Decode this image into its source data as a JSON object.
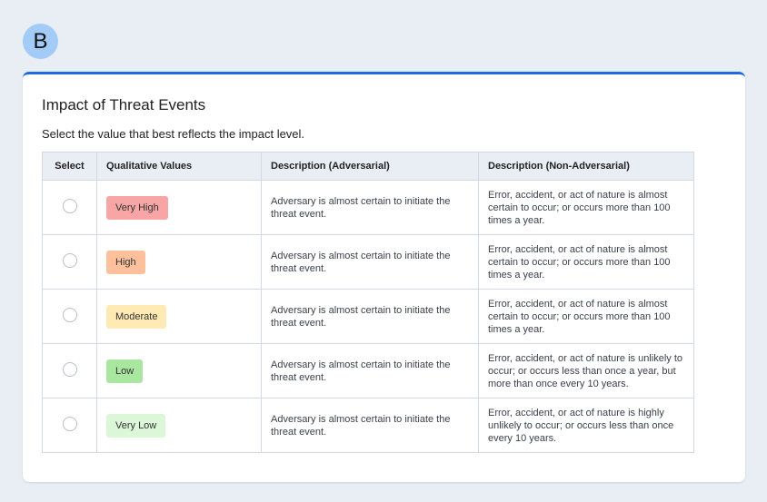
{
  "avatar": {
    "letter": "B"
  },
  "card": {
    "title": "Impact of Threat Events",
    "subtitle": "Select the value that best reflects the impact level.",
    "accent": "#1f6ae0"
  },
  "table": {
    "headers": [
      "Select",
      "Qualitative Values",
      "Description (Adversarial)",
      "Description (Non-Adversarial)"
    ],
    "rows": [
      {
        "value": "Very High",
        "color": "#f8a5a5",
        "adversarial": "Adversary is almost certain to initiate the threat event.",
        "non_adversarial": "Error, accident, or act of nature is almost certain to occur; or occurs more than 100 times a year.",
        "selected": false
      },
      {
        "value": "High",
        "color": "#fdc09c",
        "adversarial": "Adversary is almost certain to initiate the threat event.",
        "non_adversarial": "Error, accident, or act of nature is almost certain to occur; or occurs more than 100 times a year.",
        "selected": false
      },
      {
        "value": "Moderate",
        "color": "#feeab2",
        "adversarial": "Adversary is almost certain to initiate the threat event.",
        "non_adversarial": "Error, accident, or act of nature is almost certain to occur; or occurs more than 100 times a year.",
        "selected": false
      },
      {
        "value": "Low",
        "color": "#a9e6a0",
        "adversarial": "Adversary is almost certain to initiate the threat event.",
        "non_adversarial": "Error, accident, or act of nature is unlikely to occur; or occurs less than once a year, but more than once every 10 years.",
        "selected": false
      },
      {
        "value": "Very Low",
        "color": "#dcf7d8",
        "adversarial": "Adversary is almost certain to initiate the threat event.",
        "non_adversarial": "Error, accident, or act of nature is highly unlikely to occur; or occurs less than once every 10 years.",
        "selected": false
      }
    ]
  }
}
